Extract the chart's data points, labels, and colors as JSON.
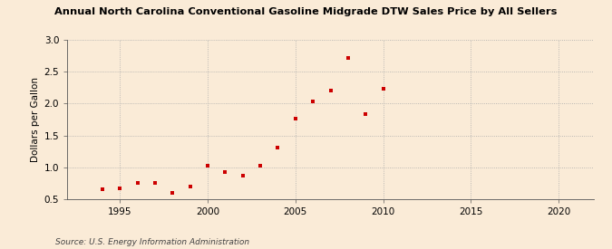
{
  "title": "Annual North Carolina Conventional Gasoline Midgrade DTW Sales Price by All Sellers",
  "ylabel": "Dollars per Gallon",
  "source": "Source: U.S. Energy Information Administration",
  "background_color": "#faebd7",
  "marker_color": "#cc0000",
  "xlim": [
    1992,
    2022
  ],
  "ylim": [
    0.5,
    3.0
  ],
  "xticks": [
    1995,
    2000,
    2005,
    2010,
    2015,
    2020
  ],
  "yticks": [
    0.5,
    1.0,
    1.5,
    2.0,
    2.5,
    3.0
  ],
  "years": [
    1994,
    1995,
    1996,
    1997,
    1998,
    1999,
    2000,
    2001,
    2002,
    2003,
    2004,
    2005,
    2006,
    2007,
    2008,
    2009,
    2010
  ],
  "values": [
    0.65,
    0.67,
    0.76,
    0.76,
    0.6,
    0.7,
    1.02,
    0.93,
    0.87,
    1.03,
    1.31,
    1.77,
    2.03,
    2.2,
    2.72,
    1.84,
    2.23
  ]
}
